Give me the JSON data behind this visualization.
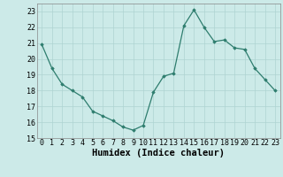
{
  "x": [
    0,
    1,
    2,
    3,
    4,
    5,
    6,
    7,
    8,
    9,
    10,
    11,
    12,
    13,
    14,
    15,
    16,
    17,
    18,
    19,
    20,
    21,
    22,
    23
  ],
  "y": [
    20.9,
    19.4,
    18.4,
    18.0,
    17.6,
    16.7,
    16.4,
    16.1,
    15.7,
    15.5,
    15.8,
    17.9,
    18.9,
    19.1,
    22.1,
    23.1,
    22.0,
    21.1,
    21.2,
    20.7,
    20.6,
    19.4,
    18.7,
    18.0
  ],
  "xlabel": "Humidex (Indice chaleur)",
  "ylim": [
    15,
    23.5
  ],
  "xlim": [
    -0.5,
    23.5
  ],
  "yticks": [
    15,
    16,
    17,
    18,
    19,
    20,
    21,
    22,
    23
  ],
  "xticks": [
    0,
    1,
    2,
    3,
    4,
    5,
    6,
    7,
    8,
    9,
    10,
    11,
    12,
    13,
    14,
    15,
    16,
    17,
    18,
    19,
    20,
    21,
    22,
    23
  ],
  "line_color": "#2e7d6e",
  "marker": "D",
  "marker_size": 1.8,
  "bg_color": "#cceae8",
  "grid_color": "#aed4d2",
  "xlabel_fontsize": 7.5,
  "tick_fontsize": 6.0,
  "linewidth": 0.9
}
